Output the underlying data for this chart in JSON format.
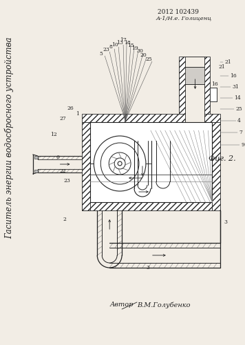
{
  "bg_color": "#f2ede5",
  "lc": "#222222",
  "fig_label": "Фиг. 2.",
  "patent_line1": "2012 102439",
  "patent_line2": "А-1/Н.е. Голиценц",
  "title": "Гаситель энергии водосбросного устройства",
  "author": "В.М.Голубенко"
}
